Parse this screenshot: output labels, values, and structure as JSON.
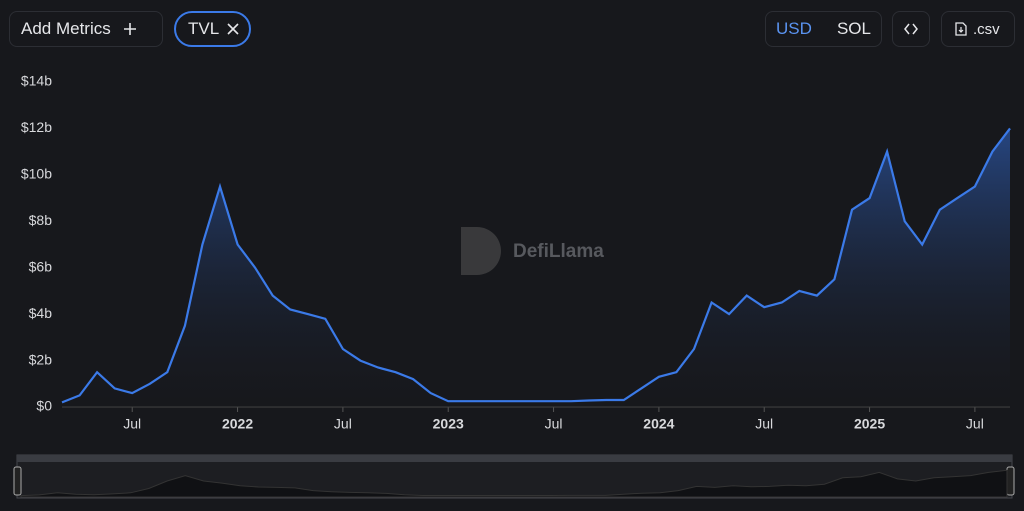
{
  "toolbar": {
    "add_metrics": "Add Metrics",
    "currencies": [
      "USD",
      "SOL"
    ],
    "csv": ".csv"
  },
  "watermark": "DefiLlama",
  "chart_data": {
    "type": "area",
    "x": [
      "2021-03",
      "2021-04",
      "2021-05",
      "2021-06",
      "2021-07",
      "2021-08",
      "2021-09",
      "2021-10",
      "2021-11",
      "2021-12",
      "2022-01",
      "2022-02",
      "2022-03",
      "2022-04",
      "2022-05",
      "2022-06",
      "2022-07",
      "2022-08",
      "2022-09",
      "2022-10",
      "2022-11",
      "2022-12",
      "2023-01",
      "2023-02",
      "2023-03",
      "2023-04",
      "2023-05",
      "2023-06",
      "2023-07",
      "2023-08",
      "2023-09",
      "2023-10",
      "2023-11",
      "2023-12",
      "2024-01",
      "2024-02",
      "2024-03",
      "2024-04",
      "2024-05",
      "2024-06",
      "2024-07",
      "2024-08",
      "2024-09",
      "2024-10",
      "2024-11",
      "2024-12",
      "2025-01",
      "2025-02",
      "2025-03",
      "2025-04",
      "2025-05",
      "2025-06",
      "2025-07",
      "2025-08",
      "2025-09"
    ],
    "series": [
      {
        "name": "TVL",
        "color": "#3b7ae8",
        "values": [
          0.2,
          0.5,
          1.5,
          0.8,
          0.6,
          1.0,
          1.5,
          3.5,
          7.0,
          9.5,
          7.0,
          6.0,
          4.8,
          4.2,
          4.0,
          3.8,
          2.5,
          2.0,
          1.7,
          1.5,
          1.2,
          0.6,
          0.25,
          0.25,
          0.25,
          0.25,
          0.25,
          0.25,
          0.25,
          0.25,
          0.28,
          0.3,
          0.3,
          0.8,
          1.3,
          1.5,
          2.5,
          4.5,
          4.0,
          4.8,
          4.3,
          4.5,
          5.0,
          4.8,
          5.5,
          8.5,
          9.0,
          11.0,
          8.0,
          7.0,
          8.5,
          9.0,
          9.5,
          11.0,
          12.0
        ]
      }
    ],
    "xlim": [
      "2021-03",
      "2025-09"
    ],
    "xticks": [
      {
        "value": "2021-07",
        "label": "Jul"
      },
      {
        "value": "2022-01",
        "label": "2022"
      },
      {
        "value": "2022-07",
        "label": "Jul"
      },
      {
        "value": "2023-01",
        "label": "2023"
      },
      {
        "value": "2023-07",
        "label": "Jul"
      },
      {
        "value": "2024-01",
        "label": "2024"
      },
      {
        "value": "2024-07",
        "label": "Jul"
      },
      {
        "value": "2025-01",
        "label": "2025"
      },
      {
        "value": "2025-07",
        "label": "Jul"
      }
    ],
    "ylim": [
      0,
      14
    ],
    "yticks": [
      {
        "value": 0,
        "label": "$0"
      },
      {
        "value": 2,
        "label": "$2b"
      },
      {
        "value": 4,
        "label": "$4b"
      },
      {
        "value": 6,
        "label": "$6b"
      },
      {
        "value": 8,
        "label": "$8b"
      },
      {
        "value": 10,
        "label": "$10b"
      },
      {
        "value": 12,
        "label": "$12b"
      },
      {
        "value": 14,
        "label": "$14b"
      }
    ]
  }
}
